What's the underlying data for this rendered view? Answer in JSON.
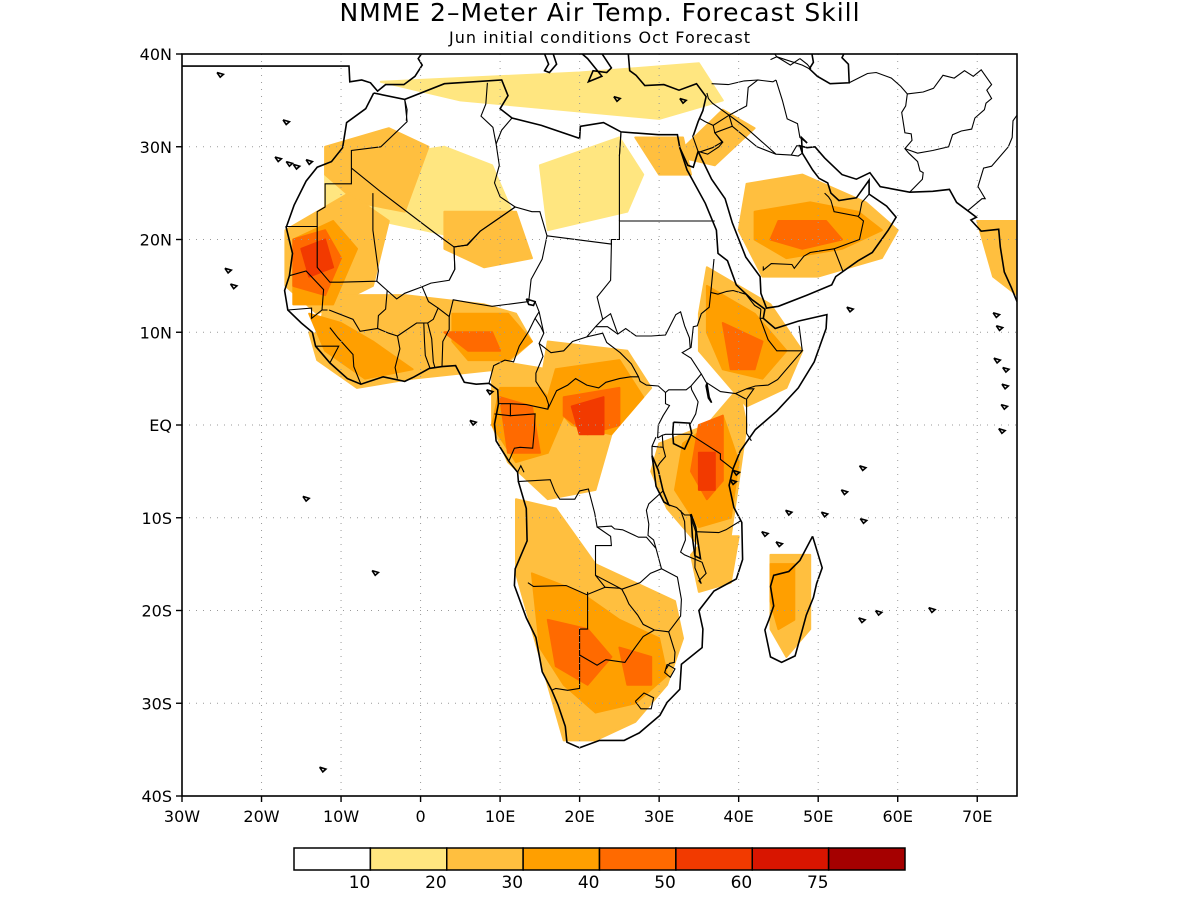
{
  "title": "NMME 2–Meter Air Temp. Forecast Skill",
  "subtitle": "Jun initial conditions  Oct Forecast",
  "map": {
    "lon_range": [
      -30,
      75
    ],
    "lat_range": [
      -40,
      40
    ],
    "lat_labels": [
      "40N",
      "30N",
      "20N",
      "10N",
      "EQ",
      "10S",
      "20S",
      "30S",
      "40S"
    ],
    "lat_values": [
      40,
      30,
      20,
      10,
      0,
      -10,
      -20,
      -30,
      -40
    ],
    "lon_labels": [
      "30W",
      "20W",
      "10W",
      "0",
      "10E",
      "20E",
      "30E",
      "40E",
      "50E",
      "60E",
      "70E"
    ],
    "lon_values": [
      -30,
      -20,
      -10,
      0,
      10,
      20,
      30,
      40,
      50,
      60,
      70
    ],
    "gridlines": true
  },
  "colorbar": {
    "levels": [
      "10",
      "20",
      "30",
      "40",
      "50",
      "60",
      "75"
    ],
    "colors": [
      "#ffffff",
      "#ffe680",
      "#ffbf3f",
      "#ff9f00",
      "#ff6a00",
      "#f23a00",
      "#d81500",
      "#a50000"
    ]
  },
  "skill_regions": [
    {
      "c": 1,
      "pts": [
        [
          -12,
          28
        ],
        [
          3,
          30
        ],
        [
          9,
          28
        ],
        [
          12,
          22
        ],
        [
          14,
          18
        ],
        [
          6,
          20
        ],
        [
          -5,
          22
        ],
        [
          -12,
          23
        ]
      ]
    },
    {
      "c": 1,
      "pts": [
        [
          15,
          28
        ],
        [
          25,
          31
        ],
        [
          28,
          27
        ],
        [
          26,
          23
        ],
        [
          16,
          21
        ]
      ]
    },
    {
      "c": 1,
      "pts": [
        [
          -5,
          37
        ],
        [
          20,
          38
        ],
        [
          35,
          39
        ],
        [
          38,
          35
        ],
        [
          30,
          33
        ],
        [
          5,
          35
        ]
      ]
    },
    {
      "c": 2,
      "pts": [
        [
          -12,
          30
        ],
        [
          -4,
          32
        ],
        [
          1,
          30
        ],
        [
          -2,
          23
        ],
        [
          -8,
          24
        ],
        [
          -12,
          27
        ]
      ]
    },
    {
      "c": 2,
      "pts": [
        [
          3,
          23
        ],
        [
          12,
          23
        ],
        [
          14,
          18
        ],
        [
          8,
          17
        ],
        [
          3,
          19
        ]
      ]
    },
    {
      "c": 2,
      "pts": [
        [
          -17,
          21
        ],
        [
          -9,
          25
        ],
        [
          -4,
          22
        ],
        [
          -6,
          15
        ],
        [
          -13,
          12
        ],
        [
          -17,
          15
        ]
      ]
    },
    {
      "c": 2,
      "pts": [
        [
          -12,
          14
        ],
        [
          -2,
          14
        ],
        [
          8,
          13
        ],
        [
          12,
          12
        ],
        [
          14,
          9
        ],
        [
          10,
          6
        ],
        [
          -1,
          5
        ],
        [
          -8,
          5
        ],
        [
          -13,
          8
        ]
      ]
    },
    {
      "c": 2,
      "pts": [
        [
          -14,
          10
        ],
        [
          -9,
          9
        ],
        [
          -4,
          7
        ],
        [
          -1,
          5
        ],
        [
          -8,
          4
        ],
        [
          -13,
          7
        ]
      ]
    },
    {
      "c": 2,
      "pts": [
        [
          16,
          9
        ],
        [
          26,
          8
        ],
        [
          29,
          4
        ],
        [
          26,
          1
        ],
        [
          20,
          2
        ],
        [
          15,
          4
        ]
      ]
    },
    {
      "c": 2,
      "pts": [
        [
          9,
          7
        ],
        [
          16,
          6
        ],
        [
          22,
          4
        ],
        [
          24,
          -1
        ],
        [
          22,
          -7
        ],
        [
          16,
          -8
        ],
        [
          11,
          -4
        ],
        [
          9,
          0
        ]
      ]
    },
    {
      "c": 2,
      "pts": [
        [
          36,
          17
        ],
        [
          44,
          13
        ],
        [
          48,
          8
        ],
        [
          46,
          4
        ],
        [
          41,
          2
        ],
        [
          38,
          5
        ],
        [
          35,
          8
        ],
        [
          35,
          12
        ]
      ]
    },
    {
      "c": 2,
      "pts": [
        [
          30,
          -2
        ],
        [
          36,
          0
        ],
        [
          40,
          4
        ],
        [
          41,
          0
        ],
        [
          40,
          -6
        ],
        [
          39,
          -12
        ],
        [
          35,
          -13
        ],
        [
          31,
          -9
        ],
        [
          29,
          -5
        ]
      ]
    },
    {
      "c": 2,
      "pts": [
        [
          36,
          -12
        ],
        [
          40,
          -12
        ],
        [
          39,
          -17
        ],
        [
          35,
          -18
        ],
        [
          34,
          -14
        ]
      ]
    },
    {
      "c": 2,
      "pts": [
        [
          12,
          -8
        ],
        [
          17,
          -9
        ],
        [
          22,
          -15
        ],
        [
          27,
          -17
        ],
        [
          32,
          -19
        ],
        [
          33,
          -23
        ],
        [
          31,
          -28
        ],
        [
          27,
          -32
        ],
        [
          22,
          -34
        ],
        [
          18,
          -34
        ],
        [
          16,
          -28
        ],
        [
          14,
          -22
        ],
        [
          12,
          -16
        ]
      ]
    },
    {
      "c": 2,
      "pts": [
        [
          44,
          -14
        ],
        [
          49,
          -14
        ],
        [
          49,
          -22
        ],
        [
          46,
          -25
        ],
        [
          44,
          -22
        ]
      ]
    },
    {
      "c": 2,
      "pts": [
        [
          41,
          26
        ],
        [
          48,
          27
        ],
        [
          56,
          24
        ],
        [
          60,
          21
        ],
        [
          58,
          18
        ],
        [
          50,
          16
        ],
        [
          43,
          16
        ],
        [
          40,
          21
        ]
      ]
    },
    {
      "c": 2,
      "pts": [
        [
          27,
          31
        ],
        [
          33,
          31
        ],
        [
          34,
          27
        ],
        [
          30,
          27
        ]
      ]
    },
    {
      "c": 2,
      "pts": [
        [
          32,
          29
        ],
        [
          38,
          34
        ],
        [
          42,
          32
        ],
        [
          37,
          28
        ]
      ]
    },
    {
      "c": 2,
      "pts": [
        [
          70,
          22
        ],
        [
          75,
          22
        ],
        [
          75,
          14
        ],
        [
          72,
          16
        ]
      ]
    },
    {
      "c": 3,
      "pts": [
        [
          -16,
          20
        ],
        [
          -11,
          22
        ],
        [
          -8,
          19
        ],
        [
          -11,
          13
        ],
        [
          -16,
          13
        ]
      ]
    },
    {
      "c": 3,
      "pts": [
        [
          -14,
          12
        ],
        [
          -10,
          11
        ],
        [
          -6,
          9
        ],
        [
          -1,
          6
        ],
        [
          -7,
          5
        ],
        [
          -12,
          8
        ]
      ]
    },
    {
      "c": 3,
      "pts": [
        [
          4,
          12
        ],
        [
          11,
          12
        ],
        [
          14,
          9
        ],
        [
          11,
          7
        ],
        [
          6,
          7
        ],
        [
          4,
          9
        ]
      ]
    },
    {
      "c": 3,
      "pts": [
        [
          10,
          4
        ],
        [
          15,
          4
        ],
        [
          18,
          1
        ],
        [
          16,
          -3
        ],
        [
          12,
          -4
        ],
        [
          9,
          0
        ]
      ]
    },
    {
      "c": 3,
      "pts": [
        [
          17,
          6
        ],
        [
          25,
          7
        ],
        [
          28,
          3
        ],
        [
          24,
          -1
        ],
        [
          19,
          0
        ],
        [
          16,
          3
        ]
      ]
    },
    {
      "c": 3,
      "pts": [
        [
          36,
          15
        ],
        [
          42,
          12
        ],
        [
          46,
          8
        ],
        [
          43,
          5
        ],
        [
          38,
          6
        ],
        [
          36,
          10
        ]
      ]
    },
    {
      "c": 3,
      "pts": [
        [
          33,
          -2
        ],
        [
          38,
          1
        ],
        [
          40,
          -4
        ],
        [
          39,
          -10
        ],
        [
          35,
          -11
        ],
        [
          32,
          -7
        ]
      ]
    },
    {
      "c": 3,
      "pts": [
        [
          14,
          -16
        ],
        [
          20,
          -18
        ],
        [
          25,
          -21
        ],
        [
          30,
          -23
        ],
        [
          31,
          -27
        ],
        [
          27,
          -30
        ],
        [
          22,
          -31
        ],
        [
          18,
          -28
        ],
        [
          15,
          -24
        ]
      ]
    },
    {
      "c": 3,
      "pts": [
        [
          44,
          -15
        ],
        [
          47,
          -15
        ],
        [
          47,
          -21
        ],
        [
          45,
          -22
        ],
        [
          44,
          -19
        ]
      ]
    },
    {
      "c": 3,
      "pts": [
        [
          42,
          23
        ],
        [
          49,
          24
        ],
        [
          55,
          23
        ],
        [
          58,
          21
        ],
        [
          53,
          19
        ],
        [
          46,
          18
        ],
        [
          42,
          20
        ]
      ]
    },
    {
      "c": 4,
      "pts": [
        [
          -16,
          20
        ],
        [
          -12,
          21
        ],
        [
          -10,
          18
        ],
        [
          -12,
          14
        ],
        [
          -16,
          15
        ]
      ]
    },
    {
      "c": 4,
      "pts": [
        [
          3,
          10
        ],
        [
          9,
          10
        ],
        [
          10,
          8
        ],
        [
          6,
          8
        ]
      ]
    },
    {
      "c": 4,
      "pts": [
        [
          18,
          3
        ],
        [
          25,
          4
        ],
        [
          25,
          0
        ],
        [
          21,
          -1
        ],
        [
          18,
          1
        ]
      ]
    },
    {
      "c": 4,
      "pts": [
        [
          10,
          3
        ],
        [
          14,
          2
        ],
        [
          15,
          -3
        ],
        [
          11,
          -3
        ]
      ]
    },
    {
      "c": 4,
      "pts": [
        [
          38,
          11
        ],
        [
          43,
          9
        ],
        [
          42,
          6
        ],
        [
          39,
          6
        ]
      ]
    },
    {
      "c": 4,
      "pts": [
        [
          35,
          0
        ],
        [
          38,
          1
        ],
        [
          38,
          -6
        ],
        [
          36,
          -8
        ],
        [
          34,
          -5
        ]
      ]
    },
    {
      "c": 4,
      "pts": [
        [
          16,
          -21
        ],
        [
          21,
          -22
        ],
        [
          24,
          -25
        ],
        [
          21,
          -28
        ],
        [
          17,
          -26
        ]
      ]
    },
    {
      "c": 4,
      "pts": [
        [
          25,
          -24
        ],
        [
          29,
          -25
        ],
        [
          29,
          -28
        ],
        [
          26,
          -28
        ]
      ]
    },
    {
      "c": 4,
      "pts": [
        [
          45,
          22
        ],
        [
          51,
          22
        ],
        [
          53,
          20
        ],
        [
          48,
          19
        ],
        [
          44,
          20
        ]
      ]
    },
    {
      "c": 5,
      "pts": [
        [
          -15,
          19
        ],
        [
          -12,
          20
        ],
        [
          -11,
          17
        ],
        [
          -14,
          16
        ]
      ]
    },
    {
      "c": 5,
      "pts": [
        [
          19,
          2
        ],
        [
          23,
          3
        ],
        [
          23,
          -1
        ],
        [
          20,
          -1
        ]
      ]
    },
    {
      "c": 5,
      "pts": [
        [
          35,
          -3
        ],
        [
          37,
          -3
        ],
        [
          37,
          -7
        ],
        [
          35,
          -7
        ]
      ]
    }
  ]
}
